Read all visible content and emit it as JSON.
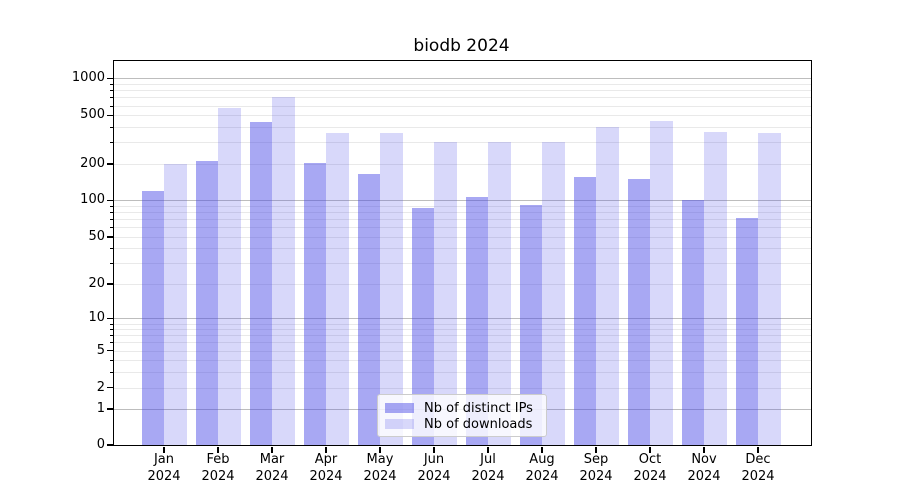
{
  "chart_data": {
    "type": "bar",
    "title": "biodb 2024",
    "categories": [
      "Jan 2024",
      "Feb 2024",
      "Mar 2024",
      "Apr 2024",
      "May 2024",
      "Jun 2024",
      "Jul 2024",
      "Aug 2024",
      "Sep 2024",
      "Oct 2024",
      "Nov 2024",
      "Dec 2024"
    ],
    "series": [
      {
        "name": "Nb of distinct IPs",
        "color": "#4646e678",
        "values": [
          120,
          210,
          440,
          202,
          165,
          87,
          107,
          92,
          156,
          150,
          101,
          72
        ]
      },
      {
        "name": "Nb of downloads",
        "color": "#4646e636",
        "values": [
          200,
          570,
          700,
          360,
          358,
          300,
          300,
          300,
          400,
          445,
          365,
          357
        ]
      }
    ],
    "xlabel": "",
    "ylabel": "",
    "y_scale": "log1p",
    "y_ticks": [
      0,
      1,
      2,
      5,
      10,
      20,
      50,
      100,
      200,
      500,
      1000
    ],
    "ylim": [
      0,
      1390
    ],
    "grid": {
      "enabled": true,
      "major_color": "#bdbdbd",
      "minor_color": "#e9e9e9"
    },
    "legend_position": "lower center"
  }
}
